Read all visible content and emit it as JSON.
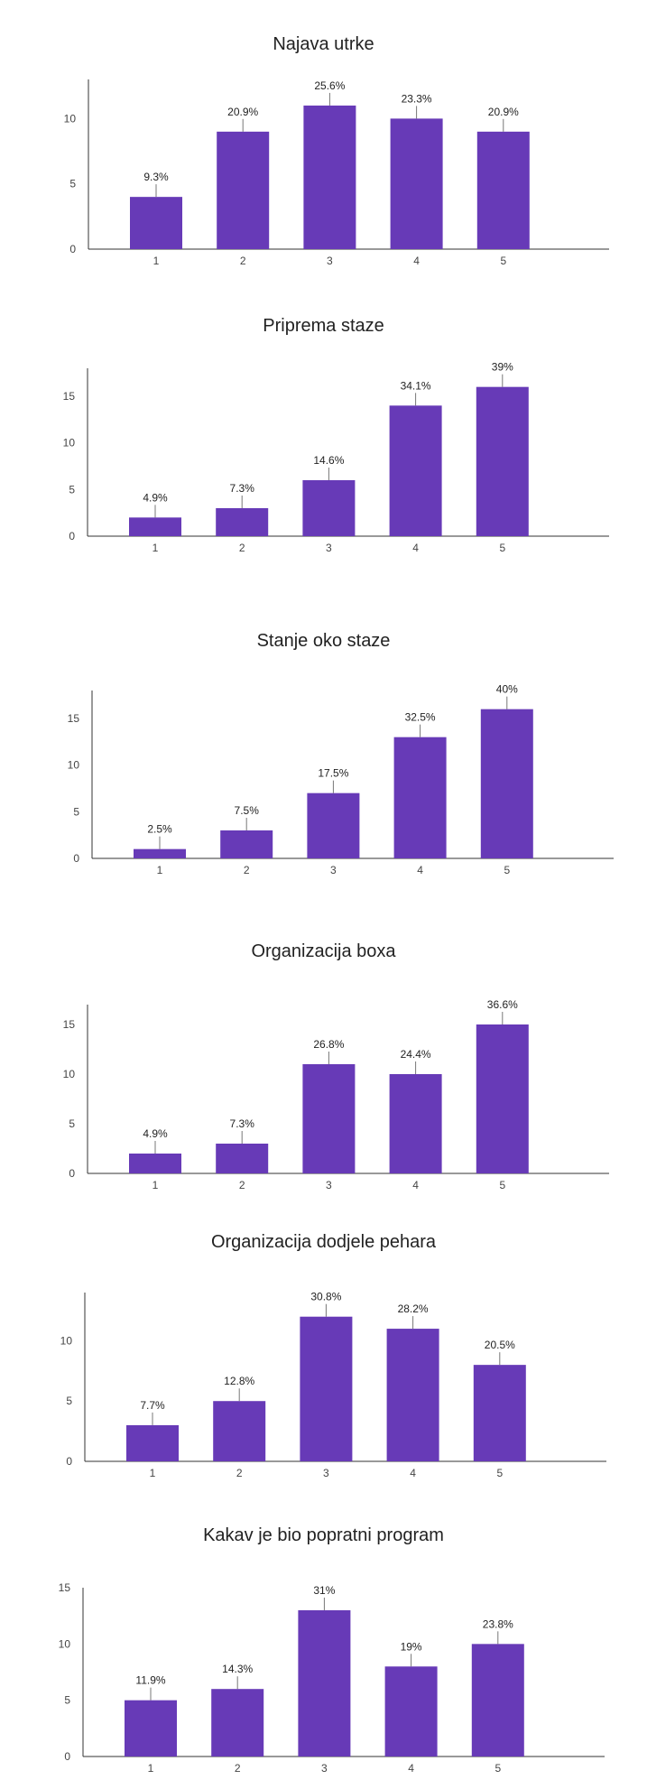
{
  "colors": {
    "bar": "#673ab7",
    "axis": "#333333",
    "label": "#222222",
    "tick": "#444444"
  },
  "chart_data": [
    {
      "type": "bar",
      "title": "Najava utrke",
      "categories": [
        "1",
        "2",
        "3",
        "4",
        "5"
      ],
      "values": [
        4,
        9,
        11,
        10,
        9
      ],
      "labels": [
        "9.3%",
        "20.9%",
        "25.6%",
        "23.3%",
        "20.9%"
      ],
      "yticks": [
        0,
        5,
        10
      ],
      "ylim": [
        0,
        13
      ],
      "grid": false,
      "legend": "none"
    },
    {
      "type": "bar",
      "title": "Priprema staze",
      "categories": [
        "1",
        "2",
        "3",
        "4",
        "5"
      ],
      "values": [
        2,
        3,
        6,
        14,
        16
      ],
      "labels": [
        "4.9%",
        "7.3%",
        "14.6%",
        "34.1%",
        "39%"
      ],
      "yticks": [
        0,
        5,
        10,
        15
      ],
      "ylim": [
        0,
        18
      ],
      "grid": false,
      "legend": "none"
    },
    {
      "type": "bar",
      "title": "Stanje oko staze",
      "categories": [
        "1",
        "2",
        "3",
        "4",
        "5"
      ],
      "values": [
        1,
        3,
        7,
        13,
        16
      ],
      "labels": [
        "2.5%",
        "7.5%",
        "17.5%",
        "32.5%",
        "40%"
      ],
      "yticks": [
        0,
        5,
        10,
        15
      ],
      "ylim": [
        0,
        18
      ],
      "grid": false,
      "legend": "none"
    },
    {
      "type": "bar",
      "title": "Organizacija boxa",
      "categories": [
        "1",
        "2",
        "3",
        "4",
        "5"
      ],
      "values": [
        2,
        3,
        11,
        10,
        15
      ],
      "labels": [
        "4.9%",
        "7.3%",
        "26.8%",
        "24.4%",
        "36.6%"
      ],
      "yticks": [
        0,
        5,
        10,
        15
      ],
      "ylim": [
        0,
        17
      ],
      "grid": false,
      "legend": "none"
    },
    {
      "type": "bar",
      "title": "Organizacija dodjele pehara",
      "categories": [
        "1",
        "2",
        "3",
        "4",
        "5"
      ],
      "values": [
        3,
        5,
        12,
        11,
        8
      ],
      "labels": [
        "7.7%",
        "12.8%",
        "30.8%",
        "28.2%",
        "20.5%"
      ],
      "yticks": [
        0,
        5,
        10
      ],
      "ylim": [
        0,
        14
      ],
      "grid": false,
      "legend": "none"
    },
    {
      "type": "bar",
      "title": "Kakav je bio popratni program",
      "categories": [
        "1",
        "2",
        "3",
        "4",
        "5"
      ],
      "values": [
        5,
        6,
        13,
        8,
        10
      ],
      "labels": [
        "11.9%",
        "14.3%",
        "31%",
        "19%",
        "23.8%"
      ],
      "yticks": [
        0,
        5,
        10,
        15
      ],
      "ylim": [
        0,
        15
      ],
      "grid": false,
      "legend": "none"
    }
  ]
}
